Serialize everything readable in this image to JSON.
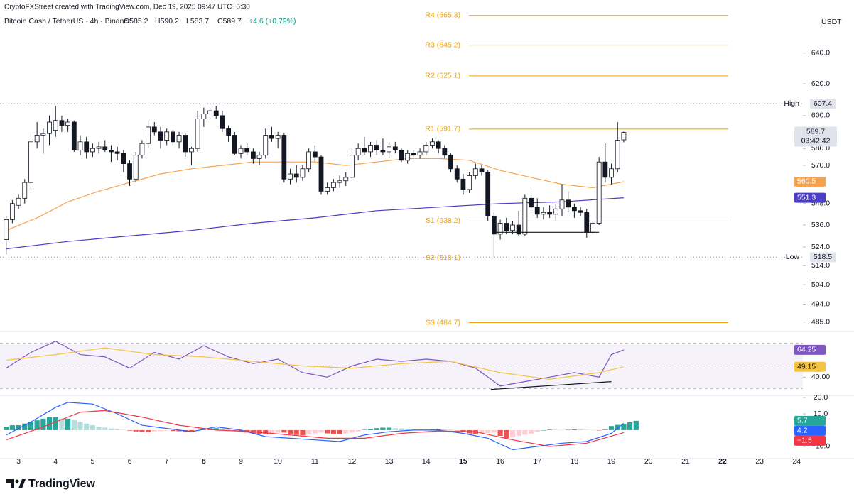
{
  "header": {
    "credit": "CryptoFXStreet created with TradingView.com, Dec 19, 2025 09:47 UTC+5:30",
    "symbol": "Bitcoin Cash / TetherUS · 4h · Binance",
    "open": "O585.2",
    "high": "H590.2",
    "low": "L583.7",
    "close": "C589.7",
    "change": "+4.6 (+0.79%)",
    "currency": "USDT"
  },
  "footer": {
    "brand": "TradingView"
  },
  "chart_data": [
    {
      "type": "candlestick",
      "log": true,
      "ylim": [
        481,
        672
      ],
      "xlim": [
        -1,
        129
      ],
      "yticks": [
        {
          "value": 640,
          "label": "640.0"
        },
        {
          "value": 620,
          "label": "620.0"
        },
        {
          "value": 600,
          "label": "600.0"
        },
        {
          "value": 580,
          "label": "580.0"
        },
        {
          "value": 570,
          "label": "570.0"
        },
        {
          "value": 548,
          "label": "548.0"
        },
        {
          "value": 536,
          "label": "536.0"
        },
        {
          "value": 524,
          "label": "524.0"
        },
        {
          "value": 514,
          "label": "514.0"
        },
        {
          "value": 504,
          "label": "504.0"
        },
        {
          "value": 494,
          "label": "494.0"
        },
        {
          "value": 485,
          "label": "485.0"
        }
      ],
      "up_color": "#ffffff",
      "down_color": "#131722",
      "edge_color": "#131722",
      "level_color": "#f0a30a",
      "levels": [
        {
          "label": "R4 (665.3)",
          "value": 665.3
        },
        {
          "label": "R3 (645.2)",
          "value": 645.2
        },
        {
          "label": "R2 (625.1)",
          "value": 625.1
        },
        {
          "label": "R1 (591.7)",
          "value": 591.7
        },
        {
          "label": "S1 (538.2)",
          "value": 538.2
        },
        {
          "label": "S2 (518.1)",
          "value": 518.1
        },
        {
          "label": "S3 (484.7)",
          "value": 484.7
        }
      ],
      "high": {
        "label": "High",
        "value": 607.4
      },
      "low": {
        "label": "Low",
        "value": 518.5
      },
      "last": {
        "value": 589.7,
        "countdown": "03:42:42"
      },
      "candles": [
        [
          528,
          541,
          520,
          539
        ],
        [
          539,
          550,
          537,
          548
        ],
        [
          547,
          553,
          545,
          551
        ],
        [
          551,
          562,
          548,
          560
        ],
        [
          560,
          590,
          556,
          584
        ],
        [
          584,
          596,
          580,
          588
        ],
        [
          588,
          592,
          577,
          589
        ],
        [
          589,
          600,
          582,
          596
        ],
        [
          591,
          606,
          587,
          597
        ],
        [
          597,
          600,
          590,
          594
        ],
        [
          594,
          598,
          590,
          596
        ],
        [
          596,
          597,
          578,
          579
        ],
        [
          579,
          588,
          576,
          584
        ],
        [
          584,
          587,
          574,
          578
        ],
        [
          578,
          583,
          575,
          580
        ],
        [
          580,
          584,
          577,
          581
        ],
        [
          581,
          585,
          578,
          579
        ],
        [
          579,
          582,
          572,
          578
        ],
        [
          578,
          581,
          573,
          577
        ],
        [
          577,
          579,
          566,
          571
        ],
        [
          571,
          573,
          558,
          562
        ],
        [
          562,
          578,
          560,
          576
        ],
        [
          576,
          585,
          574,
          583
        ],
        [
          583,
          597,
          580,
          593
        ],
        [
          593,
          596,
          588,
          590
        ],
        [
          590,
          593,
          580,
          585
        ],
        [
          585,
          592,
          582,
          590
        ],
        [
          590,
          591,
          582,
          584
        ],
        [
          584,
          590,
          580,
          588
        ],
        [
          588,
          589,
          575,
          578
        ],
        [
          578,
          581,
          570,
          580
        ],
        [
          580,
          603,
          578,
          598
        ],
        [
          598,
          605,
          593,
          601
        ],
        [
          601,
          605,
          597,
          603
        ],
        [
          603,
          606,
          598,
          600
        ],
        [
          600,
          603,
          590,
          592
        ],
        [
          592,
          594,
          584,
          588
        ],
        [
          588,
          590,
          576,
          577
        ],
        [
          577,
          582,
          574,
          580
        ],
        [
          580,
          583,
          576,
          578
        ],
        [
          578,
          580,
          571,
          574
        ],
        [
          574,
          578,
          570,
          576
        ],
        [
          576,
          592,
          574,
          588
        ],
        [
          588,
          593,
          584,
          586
        ],
        [
          586,
          590,
          580,
          588
        ],
        [
          588,
          589,
          560,
          562
        ],
        [
          562,
          568,
          559,
          565
        ],
        [
          565,
          570,
          560,
          563
        ],
        [
          563,
          570,
          561,
          568
        ],
        [
          568,
          580,
          566,
          578
        ],
        [
          578,
          582,
          572,
          575
        ],
        [
          575,
          576,
          553,
          555
        ],
        [
          555,
          560,
          553,
          557
        ],
        [
          557,
          562,
          555,
          560
        ],
        [
          560,
          564,
          557,
          561
        ],
        [
          561,
          566,
          558,
          563
        ],
        [
          563,
          580,
          561,
          576
        ],
        [
          576,
          583,
          573,
          580
        ],
        [
          580,
          587,
          576,
          578
        ],
        [
          578,
          584,
          575,
          582
        ],
        [
          582,
          585,
          576,
          579
        ],
        [
          579,
          586,
          576,
          578
        ],
        [
          578,
          583,
          574,
          581
        ],
        [
          581,
          584,
          577,
          579
        ],
        [
          579,
          580,
          572,
          573
        ],
        [
          573,
          579,
          571,
          577
        ],
        [
          577,
          579,
          574,
          576
        ],
        [
          576,
          580,
          574,
          578
        ],
        [
          578,
          584,
          576,
          582
        ],
        [
          582,
          586,
          580,
          584
        ],
        [
          584,
          585,
          577,
          580
        ],
        [
          580,
          582,
          574,
          576
        ],
        [
          576,
          577,
          566,
          568
        ],
        [
          568,
          570,
          560,
          562
        ],
        [
          562,
          565,
          553,
          556
        ],
        [
          556,
          566,
          554,
          564
        ],
        [
          564,
          571,
          562,
          568
        ],
        [
          568,
          570,
          564,
          566
        ],
        [
          566,
          567,
          538,
          541
        ],
        [
          541,
          543,
          518.5,
          531
        ],
        [
          531,
          539,
          528,
          537
        ],
        [
          537,
          540,
          531,
          533
        ],
        [
          533,
          538,
          531,
          536
        ],
        [
          536,
          544,
          530,
          531
        ],
        [
          531,
          553,
          530,
          551
        ],
        [
          551,
          555,
          544,
          546
        ],
        [
          546,
          551,
          540,
          542
        ],
        [
          542,
          546,
          539,
          543
        ],
        [
          543,
          547,
          540,
          542
        ],
        [
          542,
          548,
          538,
          545
        ],
        [
          545,
          559,
          541,
          550
        ],
        [
          550,
          555,
          543,
          546
        ],
        [
          546,
          548,
          540,
          544
        ],
        [
          544,
          546,
          541,
          543
        ],
        [
          543,
          545,
          529,
          532
        ],
        [
          532,
          538,
          531,
          537
        ],
        [
          537,
          575,
          536,
          572
        ],
        [
          572,
          583,
          560,
          563
        ],
        [
          563,
          571,
          559,
          568
        ],
        [
          568,
          596,
          566,
          585
        ],
        [
          585.2,
          590.2,
          583.7,
          589.7
        ]
      ],
      "series": [
        {
          "color": "#f7a350",
          "x": [
            0,
            5,
            10,
            15,
            20,
            25,
            30,
            35,
            40,
            45,
            50,
            55,
            60,
            65,
            70,
            75,
            80,
            85,
            90,
            95,
            100
          ],
          "values": [
            533,
            540,
            549,
            555,
            560,
            565,
            568,
            570,
            572,
            572,
            572,
            570,
            572,
            574,
            574,
            573,
            567,
            563,
            559,
            557,
            560.5
          ]
        },
        {
          "color": "#4a3fc4",
          "x": [
            0,
            10,
            20,
            30,
            40,
            50,
            60,
            70,
            80,
            90,
            100
          ],
          "values": [
            523,
            527,
            530,
            533,
            537,
            540,
            544,
            546,
            548,
            549,
            551.3
          ]
        }
      ],
      "trendlines": [
        {
          "x": [
            79,
            96
          ],
          "values": [
            532,
            532
          ]
        }
      ]
    },
    {
      "type": "line",
      "ylim": [
        25,
        80
      ],
      "xlim": [
        -1,
        129
      ],
      "yticks": [
        {
          "value": 40,
          "label": "40.00"
        }
      ],
      "band": [
        30,
        70
      ],
      "band_color": "#7e57c2",
      "levels": [
        70,
        50,
        30
      ],
      "series": [
        {
          "color": "#7e57c2",
          "x": [
            0,
            4,
            8,
            12,
            16,
            20,
            24,
            28,
            32,
            36,
            40,
            44,
            48,
            52,
            56,
            60,
            64,
            68,
            72,
            76,
            80,
            84,
            88,
            92,
            96,
            98,
            100
          ],
          "values": [
            48,
            62,
            72,
            60,
            58,
            48,
            62,
            56,
            68,
            58,
            52,
            56,
            44,
            40,
            50,
            56,
            54,
            56,
            54,
            48,
            32,
            36,
            40,
            44,
            40,
            60,
            64.25
          ]
        },
        {
          "color": "#f5c342",
          "x": [
            0,
            8,
            16,
            24,
            32,
            40,
            48,
            56,
            64,
            72,
            80,
            88,
            96,
            100
          ],
          "values": [
            55,
            60,
            66,
            60,
            58,
            54,
            50,
            48,
            52,
            54,
            44,
            38,
            44,
            49.15
          ]
        }
      ],
      "trendlines": [
        {
          "x": [
            78.5,
            98
          ],
          "values": [
            29,
            36
          ]
        }
      ]
    },
    {
      "type": "macd",
      "ylim": [
        -17,
        20
      ],
      "xlim": [
        -1,
        129
      ],
      "yticks": [
        {
          "value": 20,
          "label": "20.0"
        },
        {
          "value": 10,
          "label": "10.0"
        },
        {
          "value": -10,
          "label": "−10.0"
        }
      ],
      "xticks": [
        {
          "value": 2,
          "label": "3"
        },
        {
          "value": 8,
          "label": "4"
        },
        {
          "value": 14,
          "label": "5"
        },
        {
          "value": 20,
          "label": "6"
        },
        {
          "value": 26,
          "label": "7"
        },
        {
          "value": 32,
          "label": "8",
          "bold": true
        },
        {
          "value": 38,
          "label": "9"
        },
        {
          "value": 44,
          "label": "10"
        },
        {
          "value": 50,
          "label": "11"
        },
        {
          "value": 56,
          "label": "12"
        },
        {
          "value": 62,
          "label": "13"
        },
        {
          "value": 68,
          "label": "14"
        },
        {
          "value": 74,
          "label": "15",
          "bold": true
        },
        {
          "value": 80,
          "label": "16"
        },
        {
          "value": 86,
          "label": "17"
        },
        {
          "value": 92,
          "label": "18"
        },
        {
          "value": 98,
          "label": "19"
        },
        {
          "value": 104,
          "label": "20"
        },
        {
          "value": 110,
          "label": "21"
        },
        {
          "value": 116,
          "label": "22",
          "bold": true
        },
        {
          "value": 122,
          "label": "23"
        },
        {
          "value": 128,
          "label": "24"
        }
      ],
      "histogram_colors": [
        "#26a69a",
        "#b2dfdb",
        "#ef5350",
        "#ffcdd2"
      ],
      "histogram": [
        2,
        3,
        3,
        4,
        5,
        6,
        7,
        8,
        8,
        7,
        7,
        6,
        5,
        4,
        3,
        2,
        1.5,
        1,
        0.5,
        0.2,
        -0.3,
        -0.8,
        -1,
        -1.2,
        -0.8,
        -0.5,
        -0.3,
        -0.5,
        -0.7,
        -1,
        -1.2,
        -0.5,
        0.5,
        1,
        1.2,
        1,
        0.5,
        -0.2,
        -1,
        -1.5,
        -2,
        -2.2,
        -2.5,
        -2,
        -1.5,
        -1.5,
        -2.5,
        -3,
        -3.2,
        -2.8,
        -2,
        -1.5,
        -2,
        -2.5,
        -2.5,
        -2,
        -1.5,
        -0.8,
        0.2,
        0.8,
        1.2,
        1.5,
        1.5,
        1.2,
        1,
        0.8,
        0.6,
        0.5,
        0.4,
        0.5,
        0.6,
        0.5,
        0.3,
        -0.2,
        -1,
        -2,
        -2.5,
        -2.2,
        -1.8,
        -1.5,
        -3.5,
        -5,
        -4.5,
        -3.5,
        -2.8,
        -2.2,
        -1,
        0,
        0.3,
        0.2,
        0.1,
        0.2,
        0.5,
        0.4,
        0.2,
        0.1,
        -0.2,
        0.3,
        2.5,
        3.2,
        3.5,
        4.8,
        5.7
      ],
      "series": [
        {
          "color": "#2962ff",
          "x": [
            0,
            4,
            8,
            10,
            14,
            18,
            22,
            26,
            30,
            34,
            38,
            42,
            46,
            50,
            54,
            58,
            62,
            66,
            70,
            74,
            78,
            82,
            86,
            90,
            94,
            98,
            100
          ],
          "values": [
            -3,
            5,
            14,
            17,
            16,
            10,
            3,
            1,
            -1,
            2,
            0,
            -4,
            -5,
            -6,
            -7,
            -3,
            -1,
            0,
            0,
            -2,
            -5,
            -12,
            -10,
            -8,
            -7,
            -2,
            4.2
          ]
        },
        {
          "color": "#f23645",
          "x": [
            0,
            6,
            12,
            16,
            22,
            28,
            34,
            40,
            46,
            52,
            58,
            64,
            70,
            76,
            82,
            88,
            94,
            100
          ],
          "values": [
            -6,
            2,
            11,
            12,
            8,
            3,
            0,
            -1,
            -3,
            -5,
            -5,
            -2,
            -0.5,
            -1,
            -6,
            -10,
            -8,
            -1.5
          ],
          "value_labels": [
            null,
            null,
            null,
            null,
            null,
            null,
            null,
            null,
            null,
            null,
            null,
            null,
            null,
            null,
            null,
            null,
            null,
            "−1.5"
          ]
        }
      ]
    }
  ]
}
